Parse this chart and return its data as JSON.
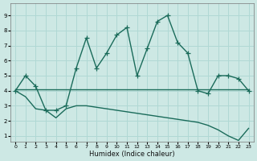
{
  "xlabel": "Humidex (Indice chaleur)",
  "bg_color": "#cde8e4",
  "grid_color": "#b0d8d4",
  "line_color": "#1a6b5a",
  "x_ticks": [
    0,
    1,
    2,
    3,
    4,
    5,
    6,
    7,
    8,
    9,
    10,
    11,
    12,
    13,
    14,
    15,
    16,
    17,
    18,
    19,
    20,
    21,
    22,
    23
  ],
  "y_ticks": [
    1,
    2,
    3,
    4,
    5,
    6,
    7,
    8,
    9
  ],
  "ylim": [
    0.6,
    9.8
  ],
  "xlim": [
    -0.5,
    23.5
  ],
  "series1_x": [
    0,
    1,
    2,
    3,
    4,
    5,
    6,
    7,
    8,
    9,
    10,
    11,
    12,
    13,
    14,
    15,
    16,
    17,
    18,
    19,
    20,
    21,
    22,
    23
  ],
  "series1_y": [
    4.0,
    5.0,
    4.3,
    2.7,
    2.7,
    3.0,
    5.5,
    7.5,
    5.5,
    6.5,
    7.7,
    8.2,
    5.0,
    6.8,
    8.6,
    9.0,
    7.2,
    6.5,
    4.0,
    3.8,
    5.0,
    5.0,
    4.8,
    4.0
  ],
  "series2_x": [
    0,
    1,
    2,
    3,
    4,
    5,
    6,
    7,
    8,
    9,
    10,
    11,
    12,
    13,
    14,
    15,
    16,
    17,
    18,
    19,
    20,
    21,
    22,
    23
  ],
  "series2_y": [
    4.1,
    4.1,
    4.1,
    4.1,
    4.1,
    4.1,
    4.1,
    4.1,
    4.1,
    4.1,
    4.1,
    4.1,
    4.1,
    4.1,
    4.1,
    4.1,
    4.1,
    4.1,
    4.1,
    4.1,
    4.1,
    4.1,
    4.1,
    4.1
  ],
  "series3_x": [
    0,
    1,
    2,
    3,
    4,
    5,
    6,
    7,
    8,
    9,
    10,
    11,
    12,
    13,
    14,
    15,
    16,
    17,
    18,
    19,
    20,
    21,
    22,
    23
  ],
  "series3_y": [
    4.0,
    3.6,
    2.8,
    2.7,
    2.2,
    2.8,
    3.0,
    3.0,
    2.9,
    2.8,
    2.7,
    2.6,
    2.5,
    2.4,
    2.3,
    2.2,
    2.1,
    2.0,
    1.9,
    1.7,
    1.4,
    1.0,
    0.7,
    1.5
  ],
  "marker_style": "+",
  "marker_size": 4,
  "line_width": 1.0
}
